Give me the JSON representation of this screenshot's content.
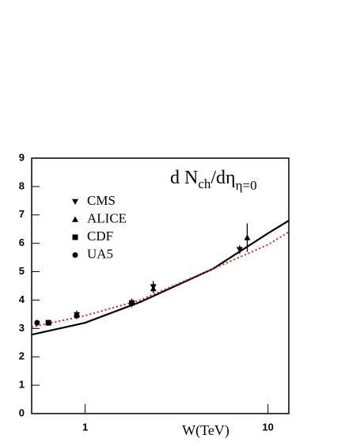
{
  "chart_data": {
    "type": "scatter",
    "xscale": "log",
    "xlabel": "W(TeV)",
    "annotation": [
      "d N",
      "ch",
      "/dη",
      "η=0"
    ],
    "xlim": [
      0.51,
      13
    ],
    "ylim": [
      0,
      9
    ],
    "xticks": [
      1,
      10
    ],
    "yticks": [
      0,
      1,
      2,
      3,
      4,
      5,
      6,
      7,
      8,
      9
    ],
    "legend": "upper left",
    "series": [
      {
        "name": "CMS",
        "marker": "triangle-down",
        "color": "#000000",
        "x": [
          0.9,
          2.36,
          7
        ],
        "values": [
          3.48,
          4.47,
          5.78
        ],
        "errors": [
          0.15,
          0.2,
          0.15
        ]
      },
      {
        "name": "ALICE",
        "marker": "triangle-up",
        "color": "#000000",
        "x": [
          0.9,
          2.36,
          7.7
        ],
        "values": [
          3.5,
          4.4,
          6.2
        ],
        "errors": [
          0.1,
          0.15,
          0.5
        ]
      },
      {
        "name": "CDF",
        "marker": "square",
        "color": "#000000",
        "x": [
          0.63,
          1.8
        ],
        "values": [
          3.2,
          3.9
        ],
        "errors": [
          0.1,
          0.15
        ]
      },
      {
        "name": "UA5",
        "marker": "circle",
        "color": "#000000",
        "x": [
          0.546,
          0.9
        ],
        "values": [
          3.2,
          3.45
        ],
        "errors": [
          0.1,
          0.1
        ]
      }
    ],
    "lines": [
      {
        "color": "#000000",
        "style": "solid",
        "x": [
          0.51,
          1,
          2,
          5,
          10,
          13
        ],
        "values": [
          2.78,
          3.2,
          3.93,
          5.1,
          6.35,
          6.8
        ]
      },
      {
        "color": "#e41a1c",
        "style": "dotted",
        "x": [
          0.51,
          1,
          2,
          5,
          10,
          13
        ],
        "values": [
          3.05,
          3.45,
          4.0,
          5.1,
          5.95,
          6.4
        ]
      }
    ]
  }
}
